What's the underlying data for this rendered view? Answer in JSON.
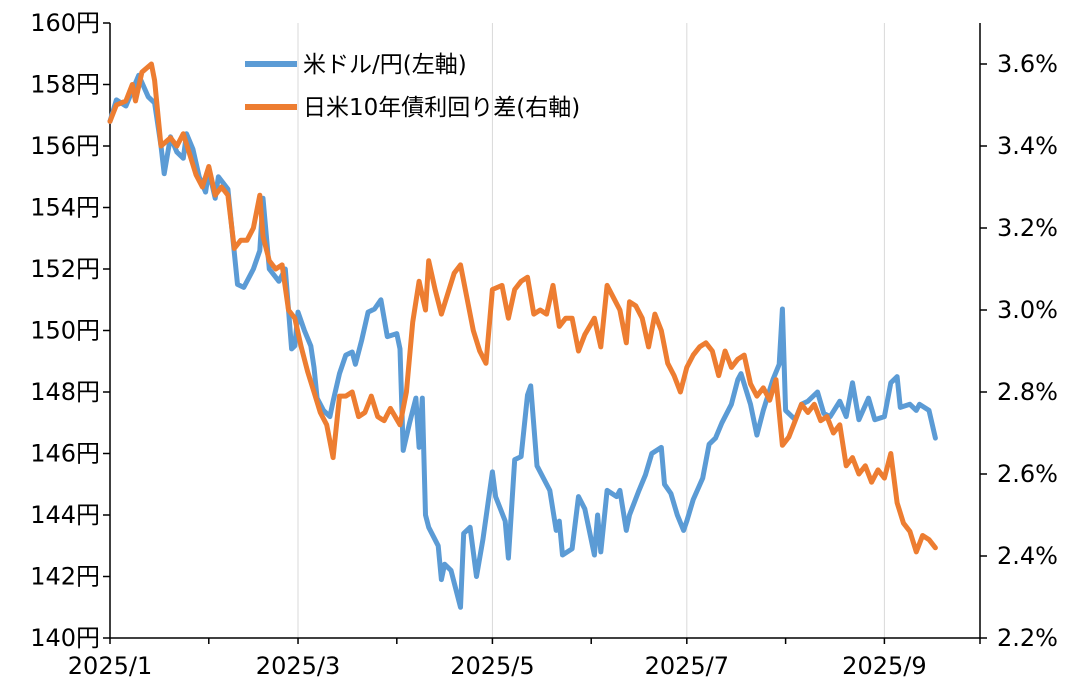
{
  "chart_data": {
    "type": "line",
    "x_ticks": [
      "2025/1",
      "2025/3",
      "2025/5",
      "2025/7",
      "2025/9"
    ],
    "x_range": [
      "2025-01-01",
      "2025-10-01"
    ],
    "y_left": {
      "ticks": [
        "140円",
        "142円",
        "144円",
        "146円",
        "148円",
        "150円",
        "152円",
        "154円",
        "156円",
        "158円",
        "160円"
      ],
      "range": [
        140,
        160
      ]
    },
    "y_right": {
      "ticks": [
        "2.2%",
        "2.4%",
        "2.6%",
        "2.8%",
        "3.0%",
        "3.2%",
        "3.4%",
        "3.6%"
      ],
      "range": [
        2.2,
        3.7
      ]
    },
    "grid": "vertical",
    "legend_position": "top-left",
    "series": [
      {
        "name": "米ドル/円(左軸)",
        "axis": "left",
        "color": "#5B9BD5",
        "points": [
          [
            "2025-01-01",
            156.8
          ],
          [
            "2025-01-03",
            157.5
          ],
          [
            "2025-01-06",
            157.3
          ],
          [
            "2025-01-08",
            157.8
          ],
          [
            "2025-01-10",
            158.3
          ],
          [
            "2025-01-13",
            157.6
          ],
          [
            "2025-01-15",
            157.4
          ],
          [
            "2025-01-17",
            156.0
          ],
          [
            "2025-01-18",
            155.1
          ],
          [
            "2025-01-20",
            156.3
          ],
          [
            "2025-01-22",
            155.8
          ],
          [
            "2025-01-24",
            155.6
          ],
          [
            "2025-01-25",
            156.4
          ],
          [
            "2025-01-27",
            155.9
          ],
          [
            "2025-01-29",
            155.0
          ],
          [
            "2025-01-31",
            154.5
          ],
          [
            "2025-02-01",
            155.2
          ],
          [
            "2025-02-03",
            154.3
          ],
          [
            "2025-02-04",
            155.0
          ],
          [
            "2025-02-07",
            154.6
          ],
          [
            "2025-02-10",
            151.5
          ],
          [
            "2025-02-12",
            151.4
          ],
          [
            "2025-02-15",
            152.0
          ],
          [
            "2025-02-17",
            152.6
          ],
          [
            "2025-02-18",
            154.3
          ],
          [
            "2025-02-20",
            152.0
          ],
          [
            "2025-02-23",
            151.6
          ],
          [
            "2025-02-25",
            152.0
          ],
          [
            "2025-02-27",
            149.4
          ],
          [
            "2025-02-28",
            149.5
          ],
          [
            "2025-03-01",
            150.6
          ],
          [
            "2025-03-03",
            150.0
          ],
          [
            "2025-03-05",
            149.5
          ],
          [
            "2025-03-06",
            148.8
          ],
          [
            "2025-03-07",
            147.8
          ],
          [
            "2025-03-09",
            147.4
          ],
          [
            "2025-03-11",
            147.2
          ],
          [
            "2025-03-12",
            147.7
          ],
          [
            "2025-03-14",
            148.6
          ],
          [
            "2025-03-16",
            149.2
          ],
          [
            "2025-03-18",
            149.3
          ],
          [
            "2025-03-19",
            148.9
          ],
          [
            "2025-03-21",
            149.7
          ],
          [
            "2025-03-23",
            150.6
          ],
          [
            "2025-03-25",
            150.7
          ],
          [
            "2025-03-27",
            151.0
          ],
          [
            "2025-03-29",
            149.8
          ],
          [
            "2025-04-01",
            149.9
          ],
          [
            "2025-04-02",
            149.4
          ],
          [
            "2025-04-03",
            146.1
          ],
          [
            "2025-04-05",
            147.0
          ],
          [
            "2025-04-07",
            147.8
          ],
          [
            "2025-04-08",
            146.2
          ],
          [
            "2025-04-09",
            147.8
          ],
          [
            "2025-04-10",
            144.0
          ],
          [
            "2025-04-11",
            143.6
          ],
          [
            "2025-04-14",
            143.0
          ],
          [
            "2025-04-15",
            141.9
          ],
          [
            "2025-04-16",
            142.4
          ],
          [
            "2025-04-18",
            142.2
          ],
          [
            "2025-04-21",
            141.0
          ],
          [
            "2025-04-22",
            143.4
          ],
          [
            "2025-04-24",
            143.6
          ],
          [
            "2025-04-26",
            142.0
          ],
          [
            "2025-04-28",
            143.2
          ],
          [
            "2025-05-01",
            145.4
          ],
          [
            "2025-05-02",
            144.6
          ],
          [
            "2025-05-05",
            143.8
          ],
          [
            "2025-05-06",
            142.6
          ],
          [
            "2025-05-08",
            145.8
          ],
          [
            "2025-05-10",
            145.9
          ],
          [
            "2025-05-12",
            147.9
          ],
          [
            "2025-05-13",
            148.2
          ],
          [
            "2025-05-15",
            145.6
          ],
          [
            "2025-05-17",
            145.2
          ],
          [
            "2025-05-19",
            144.8
          ],
          [
            "2025-05-21",
            143.5
          ],
          [
            "2025-05-22",
            143.8
          ],
          [
            "2025-05-23",
            142.7
          ],
          [
            "2025-05-26",
            142.9
          ],
          [
            "2025-05-28",
            144.6
          ],
          [
            "2025-05-30",
            144.2
          ],
          [
            "2025-06-02",
            142.7
          ],
          [
            "2025-06-03",
            144.0
          ],
          [
            "2025-06-04",
            142.8
          ],
          [
            "2025-06-06",
            144.8
          ],
          [
            "2025-06-09",
            144.6
          ],
          [
            "2025-06-10",
            144.8
          ],
          [
            "2025-06-12",
            143.5
          ],
          [
            "2025-06-13",
            144.0
          ],
          [
            "2025-06-16",
            144.8
          ],
          [
            "2025-06-18",
            145.3
          ],
          [
            "2025-06-20",
            146.0
          ],
          [
            "2025-06-23",
            146.2
          ],
          [
            "2025-06-24",
            145.0
          ],
          [
            "2025-06-26",
            144.7
          ],
          [
            "2025-06-28",
            144.0
          ],
          [
            "2025-06-30",
            143.5
          ],
          [
            "2025-07-01",
            143.8
          ],
          [
            "2025-07-03",
            144.5
          ],
          [
            "2025-07-06",
            145.2
          ],
          [
            "2025-07-08",
            146.3
          ],
          [
            "2025-07-10",
            146.5
          ],
          [
            "2025-07-12",
            147.0
          ],
          [
            "2025-07-15",
            147.6
          ],
          [
            "2025-07-17",
            148.4
          ],
          [
            "2025-07-18",
            148.6
          ],
          [
            "2025-07-21",
            147.6
          ],
          [
            "2025-07-23",
            146.6
          ],
          [
            "2025-07-25",
            147.4
          ],
          [
            "2025-07-28",
            148.4
          ],
          [
            "2025-07-30",
            148.9
          ],
          [
            "2025-07-31",
            150.7
          ],
          [
            "2025-08-01",
            147.4
          ],
          [
            "2025-08-04",
            147.1
          ],
          [
            "2025-08-06",
            147.6
          ],
          [
            "2025-08-08",
            147.7
          ],
          [
            "2025-08-11",
            148.0
          ],
          [
            "2025-08-13",
            147.3
          ],
          [
            "2025-08-15",
            147.2
          ],
          [
            "2025-08-18",
            147.7
          ],
          [
            "2025-08-20",
            147.2
          ],
          [
            "2025-08-22",
            148.3
          ],
          [
            "2025-08-24",
            147.1
          ],
          [
            "2025-08-27",
            147.8
          ],
          [
            "2025-08-29",
            147.1
          ],
          [
            "2025-09-01",
            147.2
          ],
          [
            "2025-09-03",
            148.3
          ],
          [
            "2025-09-05",
            148.5
          ],
          [
            "2025-09-06",
            147.5
          ],
          [
            "2025-09-09",
            147.6
          ],
          [
            "2025-09-11",
            147.4
          ],
          [
            "2025-09-12",
            147.6
          ],
          [
            "2025-09-15",
            147.4
          ],
          [
            "2025-09-17",
            146.5
          ]
        ]
      },
      {
        "name": "日米10年債利回り差(右軸)",
        "axis": "right",
        "color": "#ED7D31",
        "points": [
          [
            "2025-01-01",
            3.46
          ],
          [
            "2025-01-03",
            3.5
          ],
          [
            "2025-01-06",
            3.51
          ],
          [
            "2025-01-08",
            3.55
          ],
          [
            "2025-01-09",
            3.51
          ],
          [
            "2025-01-11",
            3.58
          ],
          [
            "2025-01-14",
            3.6
          ],
          [
            "2025-01-15",
            3.56
          ],
          [
            "2025-01-17",
            3.4
          ],
          [
            "2025-01-20",
            3.42
          ],
          [
            "2025-01-22",
            3.4
          ],
          [
            "2025-01-24",
            3.43
          ],
          [
            "2025-01-26",
            3.38
          ],
          [
            "2025-01-28",
            3.33
          ],
          [
            "2025-01-30",
            3.3
          ],
          [
            "2025-02-01",
            3.35
          ],
          [
            "2025-02-03",
            3.28
          ],
          [
            "2025-02-05",
            3.3
          ],
          [
            "2025-02-07",
            3.28
          ],
          [
            "2025-02-09",
            3.15
          ],
          [
            "2025-02-11",
            3.17
          ],
          [
            "2025-02-13",
            3.17
          ],
          [
            "2025-02-15",
            3.2
          ],
          [
            "2025-02-17",
            3.28
          ],
          [
            "2025-02-18",
            3.18
          ],
          [
            "2025-02-20",
            3.12
          ],
          [
            "2025-02-22",
            3.1
          ],
          [
            "2025-02-24",
            3.11
          ],
          [
            "2025-02-26",
            3.0
          ],
          [
            "2025-02-28",
            2.98
          ],
          [
            "2025-03-02",
            2.91
          ],
          [
            "2025-03-04",
            2.85
          ],
          [
            "2025-03-06",
            2.8
          ],
          [
            "2025-03-08",
            2.75
          ],
          [
            "2025-03-10",
            2.72
          ],
          [
            "2025-03-12",
            2.64
          ],
          [
            "2025-03-14",
            2.79
          ],
          [
            "2025-03-16",
            2.79
          ],
          [
            "2025-03-18",
            2.8
          ],
          [
            "2025-03-20",
            2.74
          ],
          [
            "2025-03-22",
            2.75
          ],
          [
            "2025-03-24",
            2.79
          ],
          [
            "2025-03-26",
            2.74
          ],
          [
            "2025-03-28",
            2.73
          ],
          [
            "2025-03-30",
            2.76
          ],
          [
            "2025-04-02",
            2.72
          ],
          [
            "2025-04-04",
            2.8
          ],
          [
            "2025-04-06",
            2.97
          ],
          [
            "2025-04-08",
            3.07
          ],
          [
            "2025-04-10",
            3.0
          ],
          [
            "2025-04-11",
            3.12
          ],
          [
            "2025-04-13",
            3.05
          ],
          [
            "2025-04-15",
            2.99
          ],
          [
            "2025-04-17",
            3.04
          ],
          [
            "2025-04-19",
            3.09
          ],
          [
            "2025-04-21",
            3.11
          ],
          [
            "2025-04-23",
            3.03
          ],
          [
            "2025-04-25",
            2.95
          ],
          [
            "2025-04-27",
            2.9
          ],
          [
            "2025-04-29",
            2.87
          ],
          [
            "2025-05-01",
            3.05
          ],
          [
            "2025-05-04",
            3.06
          ],
          [
            "2025-05-06",
            2.98
          ],
          [
            "2025-05-08",
            3.05
          ],
          [
            "2025-05-10",
            3.07
          ],
          [
            "2025-05-12",
            3.08
          ],
          [
            "2025-05-14",
            2.99
          ],
          [
            "2025-05-16",
            3.0
          ],
          [
            "2025-05-18",
            2.99
          ],
          [
            "2025-05-20",
            3.06
          ],
          [
            "2025-05-22",
            2.96
          ],
          [
            "2025-05-24",
            2.98
          ],
          [
            "2025-05-26",
            2.98
          ],
          [
            "2025-05-28",
            2.9
          ],
          [
            "2025-05-30",
            2.94
          ],
          [
            "2025-06-02",
            2.98
          ],
          [
            "2025-06-04",
            2.91
          ],
          [
            "2025-06-06",
            3.06
          ],
          [
            "2025-06-08",
            3.03
          ],
          [
            "2025-06-10",
            3.0
          ],
          [
            "2025-06-12",
            2.92
          ],
          [
            "2025-06-13",
            3.02
          ],
          [
            "2025-06-15",
            3.01
          ],
          [
            "2025-06-17",
            2.98
          ],
          [
            "2025-06-19",
            2.91
          ],
          [
            "2025-06-21",
            2.99
          ],
          [
            "2025-06-23",
            2.95
          ],
          [
            "2025-06-25",
            2.87
          ],
          [
            "2025-06-27",
            2.84
          ],
          [
            "2025-06-29",
            2.8
          ],
          [
            "2025-07-01",
            2.86
          ],
          [
            "2025-07-03",
            2.89
          ],
          [
            "2025-07-05",
            2.91
          ],
          [
            "2025-07-07",
            2.92
          ],
          [
            "2025-07-09",
            2.9
          ],
          [
            "2025-07-11",
            2.84
          ],
          [
            "2025-07-13",
            2.9
          ],
          [
            "2025-07-15",
            2.86
          ],
          [
            "2025-07-17",
            2.88
          ],
          [
            "2025-07-19",
            2.89
          ],
          [
            "2025-07-21",
            2.82
          ],
          [
            "2025-07-23",
            2.79
          ],
          [
            "2025-07-25",
            2.81
          ],
          [
            "2025-07-27",
            2.78
          ],
          [
            "2025-07-29",
            2.83
          ],
          [
            "2025-07-31",
            2.67
          ],
          [
            "2025-08-02",
            2.69
          ],
          [
            "2025-08-04",
            2.73
          ],
          [
            "2025-08-06",
            2.77
          ],
          [
            "2025-08-08",
            2.75
          ],
          [
            "2025-08-10",
            2.77
          ],
          [
            "2025-08-12",
            2.73
          ],
          [
            "2025-08-14",
            2.74
          ],
          [
            "2025-08-16",
            2.7
          ],
          [
            "2025-08-18",
            2.72
          ],
          [
            "2025-08-20",
            2.62
          ],
          [
            "2025-08-22",
            2.64
          ],
          [
            "2025-08-24",
            2.6
          ],
          [
            "2025-08-26",
            2.62
          ],
          [
            "2025-08-28",
            2.58
          ],
          [
            "2025-08-30",
            2.61
          ],
          [
            "2025-09-01",
            2.59
          ],
          [
            "2025-09-03",
            2.65
          ],
          [
            "2025-09-05",
            2.53
          ],
          [
            "2025-09-07",
            2.48
          ],
          [
            "2025-09-09",
            2.46
          ],
          [
            "2025-09-11",
            2.41
          ],
          [
            "2025-09-13",
            2.45
          ],
          [
            "2025-09-15",
            2.44
          ],
          [
            "2025-09-17",
            2.42
          ]
        ]
      }
    ]
  }
}
